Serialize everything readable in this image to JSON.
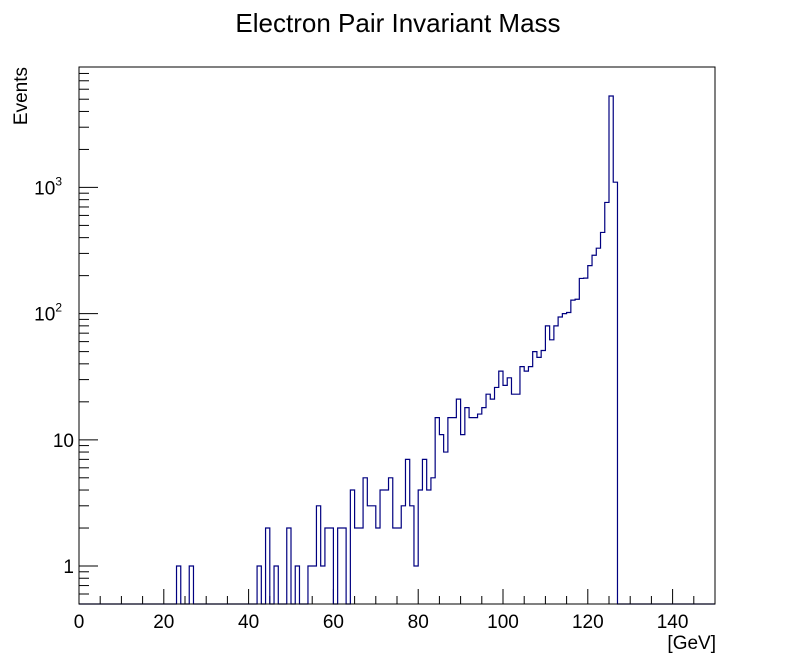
{
  "chart_data": {
    "type": "histogram",
    "title": "Electron Pair Invariant Mass",
    "xlabel": "[GeV]",
    "ylabel": "Events",
    "xlim": [
      0,
      150
    ],
    "ylim": [
      0.5,
      9000
    ],
    "yscale": "log",
    "line_color": "#000080",
    "bin_width": 1,
    "bin_start": 0,
    "x_ticks": [
      0,
      20,
      40,
      60,
      80,
      100,
      120,
      140
    ],
    "y_ticks": [
      {
        "value": 1,
        "base": "1",
        "exp": ""
      },
      {
        "value": 10,
        "base": "10",
        "exp": ""
      },
      {
        "value": 100,
        "base": "10",
        "exp": "2"
      },
      {
        "value": 1000,
        "base": "10",
        "exp": "3"
      }
    ],
    "counts": [
      0,
      0,
      0,
      0,
      0,
      0,
      0,
      0,
      0,
      0,
      0,
      0,
      0,
      0,
      0,
      0,
      0,
      0,
      0,
      0,
      0,
      0,
      0,
      1,
      0,
      0,
      1,
      0,
      0,
      0,
      0,
      0,
      0,
      0,
      0,
      0,
      0,
      0,
      0,
      0,
      0,
      0,
      1,
      0,
      2,
      0,
      1,
      0,
      0,
      2,
      0,
      1,
      0,
      0,
      1,
      1,
      3,
      1,
      2,
      2,
      0,
      2,
      2,
      0,
      4,
      2,
      2,
      5,
      3,
      3,
      2,
      4,
      4,
      5,
      2,
      2,
      3,
      7,
      3,
      1,
      4,
      7,
      4,
      5,
      15,
      11,
      8,
      15,
      15,
      21,
      11,
      18,
      15,
      15,
      16,
      18,
      23,
      21,
      26,
      35,
      27,
      31,
      23,
      23,
      38,
      35,
      38,
      50,
      45,
      51,
      80,
      62,
      80,
      94,
      100,
      102,
      128,
      130,
      190,
      191,
      240,
      290,
      330,
      440,
      760,
      5300,
      1100,
      0,
      0,
      0,
      0,
      0,
      0,
      0,
      0,
      0,
      0,
      0,
      0,
      0,
      0,
      0,
      0,
      0,
      0,
      0,
      0,
      0,
      0,
      0
    ]
  }
}
